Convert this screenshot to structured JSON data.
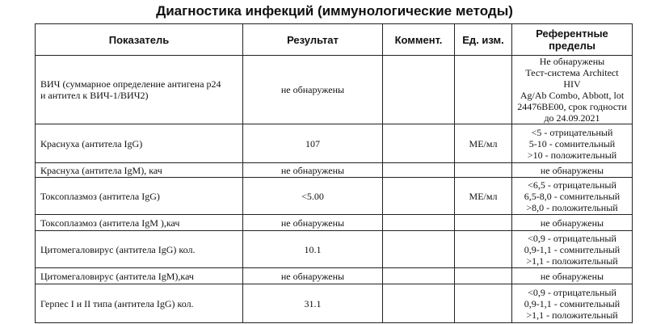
{
  "title": "Диагностика инфекций (иммунологические методы)",
  "headers": [
    "Показатель",
    "Результат",
    "Коммент.",
    "Ед. изм.",
    "Референтные пределы"
  ],
  "rows": [
    {
      "name": "ВИЧ (суммарное определение антигена р24\nи антител к ВИЧ-1/ВИЧ2)",
      "result": "не обнаружены",
      "comment": "",
      "unit": "",
      "ref": "Не обнаружены\nТест-система  Architect HIV\nAg/Ab Combo, Abbott, lot\n24476BE00, срок годности\nдо 24.09.2021"
    },
    {
      "name": "Краснуха (антитела IgG)",
      "result": "107",
      "comment": "",
      "unit": "МЕ/мл",
      "ref": "<5 - отрицательный\n5-10 - сомнительный\n>10 - положительный"
    },
    {
      "name": "Краснуха (антитела IgM), кач",
      "result": "не обнаружены",
      "comment": "",
      "unit": "",
      "ref": "не обнаружены"
    },
    {
      "name": "Токсоплазмоз (антитела IgG)",
      "result": "<5.00",
      "comment": "",
      "unit": "МЕ/мл",
      "ref": "<6,5 - отрицательный\n6,5-8,0 - сомнительный\n>8,0 - положительный"
    },
    {
      "name": "Токсоплазмоз (антитела IgM ),кач",
      "result": "не обнаружены",
      "comment": "",
      "unit": "",
      "ref": "не обнаружены"
    },
    {
      "name": "Цитомегаловирус (антитела IgG) кол.",
      "result": "10.1",
      "comment": "",
      "unit": "",
      "ref": "<0,9 - отрицательный\n0,9-1,1 - сомнительный\n>1,1 - положительный"
    },
    {
      "name": "Цитомегаловирус (антитела IgM),кач",
      "result": "не обнаружены",
      "comment": "",
      "unit": "",
      "ref": "не обнаружены"
    },
    {
      "name": "Герпес I и II типа (антитела IgG) кол.",
      "result": "31.1",
      "comment": "",
      "unit": "",
      "ref": "<0,9 - отрицательный\n0,9-1,1 - сомнительный\n>1,1 - положительный"
    }
  ]
}
